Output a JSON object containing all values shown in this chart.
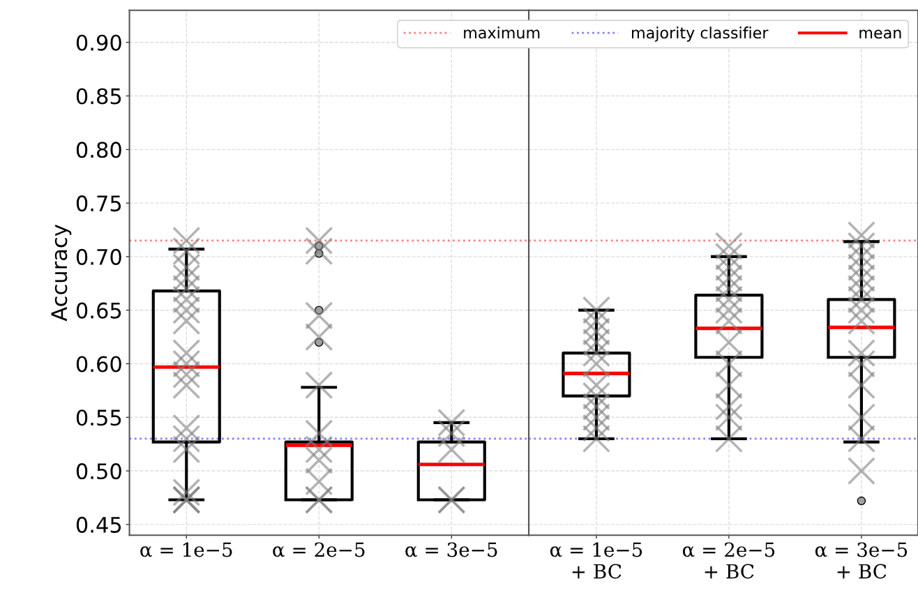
{
  "chart_data": [
    {
      "type": "box",
      "ylabel": "Accuracy",
      "categories": [
        "α = 1e−5",
        "α = 2e−5",
        "α = 3e−5"
      ],
      "ylim": [
        0.44,
        0.93
      ],
      "yticks": [
        0.45,
        {
          "value": 0.5,
          "label": "0.50"
        },
        0.55,
        {
          "value": 0.6,
          "label": "0.60"
        },
        0.65,
        {
          "value": 0.7,
          "label": "0.70"
        },
        0.75,
        {
          "value": 0.8,
          "label": "0.80"
        },
        0.85,
        {
          "value": 0.9,
          "label": "0.90"
        }
      ],
      "grid": true,
      "legend": "top right",
      "ref_lines": [
        {
          "axis": "y",
          "value": 0.715,
          "label": "maximum",
          "color": "#ff8080",
          "line_style": "dotted"
        },
        {
          "axis": "y",
          "value": 0.53,
          "label": "majority classifier",
          "color": "#8080ff",
          "line_style": "dotted"
        }
      ],
      "series": [
        {
          "name": "mean",
          "color": "#000000",
          "boxes": [
            {
              "low": 0.473,
              "q1": 0.527,
              "median": 0.597,
              "q3": 0.668,
              "high": 0.707,
              "mean": 0.597
            },
            {
              "low": 0.473,
              "q1": 0.473,
              "median": 0.524,
              "q3": 0.527,
              "high": 0.578,
              "mean": 0.524,
              "outliers": [
                0.71,
                0.703,
                0.65,
                0.62
              ]
            },
            {
              "low": 0.473,
              "q1": 0.473,
              "median": 0.506,
              "q3": 0.527,
              "high": 0.545,
              "mean": 0.506
            }
          ]
        },
        {
          "type": "scatter",
          "color": "#808080",
          "marker": "cross",
          "x": [
            "α = 1e−5",
            "α = 1e−5",
            "α = 1e−5",
            "α = 1e−5",
            "α = 1e−5",
            "α = 1e−5",
            "α = 1e−5",
            "α = 1e−5",
            "α = 1e−5",
            "α = 1e−5",
            "α = 1e−5",
            "α = 1e−5",
            "α = 1e−5",
            "α = 1e−5",
            "α = 1e−5",
            "α = 1e−5",
            "α = 1e−5",
            "α = 1e−5",
            "α = 1e−5",
            "α = 2e−5",
            "α = 2e−5",
            "α = 2e−5",
            "α = 2e−5",
            "α = 2e−5",
            "α = 2e−5",
            "α = 2e−5",
            "α = 2e−5",
            "α = 2e−5",
            "α = 2e−5",
            "α = 2e−5",
            "α = 3e−5",
            "α = 3e−5",
            "α = 3e−5",
            "α = 3e−5",
            "α = 3e−5"
          ],
          "values": [
            0.715,
            0.705,
            0.69,
            0.68,
            0.67,
            0.66,
            0.65,
            0.64,
            0.61,
            0.6,
            0.59,
            0.58,
            0.54,
            0.53,
            0.52,
            0.48,
            0.473,
            0.473,
            0.473,
            0.715,
            0.705,
            0.645,
            0.625,
            0.58,
            0.535,
            0.52,
            0.51,
            0.49,
            0.473,
            0.473,
            0.545,
            0.535,
            0.52,
            0.473,
            0.473
          ]
        }
      ]
    },
    {
      "type": "box",
      "tick_labels": "x",
      "categories": [
        "α = 1e−5\n+ BC",
        "α = 2e−5\n+ BC",
        "α = 3e−5\n+ BC"
      ],
      "ylim": [
        0.44,
        0.93
      ],
      "yticks": [
        0.45,
        0.5,
        0.55,
        0.6,
        0.65,
        0.7,
        0.75,
        0.8,
        0.85,
        0.9
      ],
      "grid": true,
      "ref_lines": [
        {
          "axis": "y",
          "value": 0.715,
          "color": "#ff8080",
          "line_style": "dotted"
        },
        {
          "axis": "y",
          "value": 0.53,
          "color": "#8080ff",
          "line_style": "dotted"
        }
      ],
      "series": [
        {
          "color": "#000000",
          "boxes": [
            {
              "low": 0.53,
              "q1": 0.57,
              "median": 0.591,
              "q3": 0.61,
              "high": 0.65,
              "mean": 0.591
            },
            {
              "low": 0.53,
              "q1": 0.606,
              "median": 0.633,
              "q3": 0.664,
              "high": 0.7,
              "mean": 0.633
            },
            {
              "low": 0.527,
              "q1": 0.606,
              "median": 0.634,
              "q3": 0.66,
              "high": 0.714,
              "mean": 0.634,
              "outliers": [
                0.472
              ]
            }
          ]
        },
        {
          "type": "scatter",
          "color": "#808080",
          "marker": "cross",
          "x": [
            "α = 1e−5\n+ BC",
            "α = 1e−5\n+ BC",
            "α = 1e−5\n+ BC",
            "α = 1e−5\n+ BC",
            "α = 1e−5\n+ BC",
            "α = 1e−5\n+ BC",
            "α = 1e−5\n+ BC",
            "α = 1e−5\n+ BC",
            "α = 1e−5\n+ BC",
            "α = 1e−5\n+ BC",
            "α = 1e−5\n+ BC",
            "α = 1e−5\n+ BC",
            "α = 2e−5\n+ BC",
            "α = 2e−5\n+ BC",
            "α = 2e−5\n+ BC",
            "α = 2e−5\n+ BC",
            "α = 2e−5\n+ BC",
            "α = 2e−5\n+ BC",
            "α = 2e−5\n+ BC",
            "α = 2e−5\n+ BC",
            "α = 2e−5\n+ BC",
            "α = 2e−5\n+ BC",
            "α = 2e−5\n+ BC",
            "α = 2e−5\n+ BC",
            "α = 2e−5\n+ BC",
            "α = 2e−5\n+ BC",
            "α = 3e−5\n+ BC",
            "α = 3e−5\n+ BC",
            "α = 3e−5\n+ BC",
            "α = 3e−5\n+ BC",
            "α = 3e−5\n+ BC",
            "α = 3e−5\n+ BC",
            "α = 3e−5\n+ BC",
            "α = 3e−5\n+ BC",
            "α = 3e−5\n+ BC",
            "α = 3e−5\n+ BC",
            "α = 3e−5\n+ BC",
            "α = 3e−5\n+ BC",
            "α = 3e−5\n+ BC",
            "α = 3e−5\n+ BC",
            "α = 3e−5\n+ BC"
          ],
          "values": [
            0.65,
            0.64,
            0.63,
            0.62,
            0.61,
            0.6,
            0.58,
            0.57,
            0.56,
            0.55,
            0.54,
            0.53,
            0.71,
            0.7,
            0.69,
            0.68,
            0.67,
            0.66,
            0.65,
            0.64,
            0.62,
            0.6,
            0.58,
            0.56,
            0.55,
            0.53,
            0.72,
            0.71,
            0.7,
            0.69,
            0.68,
            0.67,
            0.66,
            0.65,
            0.64,
            0.61,
            0.6,
            0.58,
            0.55,
            0.53,
            0.5
          ]
        }
      ]
    }
  ]
}
